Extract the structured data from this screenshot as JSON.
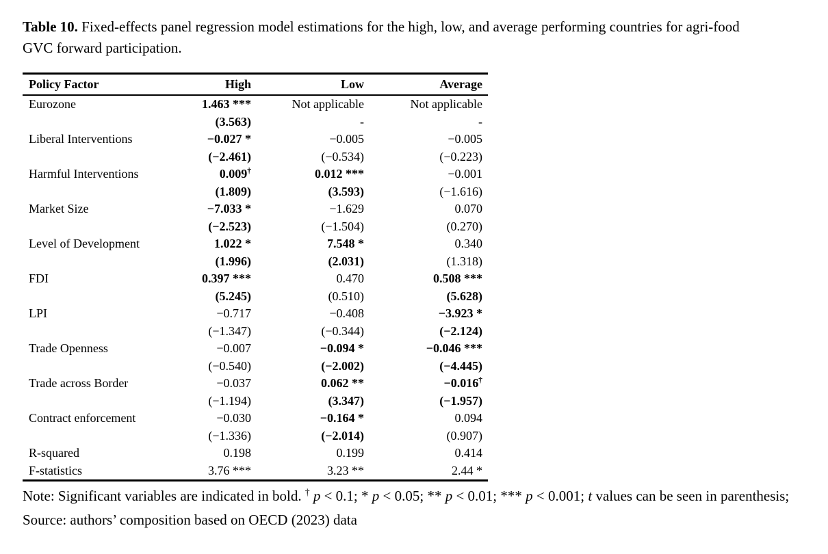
{
  "title": {
    "label": "Table 10.",
    "text": " Fixed-effects panel regression model estimations for the high, low, and average performing countries for agri-food GVC forward participation."
  },
  "table": {
    "columns": [
      "Policy Factor",
      "High",
      "Low",
      "Average"
    ],
    "rows": [
      [
        {
          "t": "Eurozone"
        },
        {
          "t": "1.463 ***",
          "b": 1
        },
        {
          "t": "Not applicable"
        },
        {
          "t": "Not applicable"
        }
      ],
      [
        {
          "t": ""
        },
        {
          "t": "(3.563)",
          "b": 1
        },
        {
          "t": "-"
        },
        {
          "t": "-"
        }
      ],
      [
        {
          "t": "Liberal Interventions"
        },
        {
          "t": "−0.027 *",
          "b": 1
        },
        {
          "t": "−0.005"
        },
        {
          "t": "−0.005"
        }
      ],
      [
        {
          "t": ""
        },
        {
          "t": "(−2.461)",
          "b": 1
        },
        {
          "t": "(−0.534)"
        },
        {
          "t": "(−0.223)"
        }
      ],
      [
        {
          "t": "Harmful Interventions"
        },
        {
          "t": "0.009",
          "s": "†",
          "b": 1
        },
        {
          "t": "0.012 ***",
          "b": 1
        },
        {
          "t": "−0.001"
        }
      ],
      [
        {
          "t": ""
        },
        {
          "t": "(1.809)",
          "b": 1
        },
        {
          "t": "(3.593)",
          "b": 1
        },
        {
          "t": "(−1.616)"
        }
      ],
      [
        {
          "t": "Market Size"
        },
        {
          "t": "−7.033 *",
          "b": 1
        },
        {
          "t": "−1.629"
        },
        {
          "t": "0.070"
        }
      ],
      [
        {
          "t": ""
        },
        {
          "t": "(−2.523)",
          "b": 1
        },
        {
          "t": "(−1.504)"
        },
        {
          "t": "(0.270)"
        }
      ],
      [
        {
          "t": "Level of Development"
        },
        {
          "t": "1.022 *",
          "b": 1
        },
        {
          "t": "7.548 *",
          "b": 1
        },
        {
          "t": "0.340"
        }
      ],
      [
        {
          "t": ""
        },
        {
          "t": "(1.996)",
          "b": 1
        },
        {
          "t": "(2.031)",
          "b": 1
        },
        {
          "t": "(1.318)"
        }
      ],
      [
        {
          "t": "FDI"
        },
        {
          "t": "0.397 ***",
          "b": 1
        },
        {
          "t": "0.470"
        },
        {
          "t": "0.508 ***",
          "b": 1
        }
      ],
      [
        {
          "t": ""
        },
        {
          "t": "(5.245)",
          "b": 1
        },
        {
          "t": "(0.510)"
        },
        {
          "t": "(5.628)",
          "b": 1
        }
      ],
      [
        {
          "t": "LPI"
        },
        {
          "t": "−0.717"
        },
        {
          "t": "−0.408"
        },
        {
          "t": "−3.923 *",
          "b": 1
        }
      ],
      [
        {
          "t": ""
        },
        {
          "t": "(−1.347)"
        },
        {
          "t": "(−0.344)"
        },
        {
          "t": "(−2.124)",
          "b": 1
        }
      ],
      [
        {
          "t": "Trade Openness"
        },
        {
          "t": "−0.007"
        },
        {
          "t": "−0.094 *",
          "b": 1
        },
        {
          "t": "−0.046 ***",
          "b": 1
        }
      ],
      [
        {
          "t": ""
        },
        {
          "t": "(−0.540)"
        },
        {
          "t": "(−2.002)",
          "b": 1
        },
        {
          "t": "(−4.445)",
          "b": 1
        }
      ],
      [
        {
          "t": "Trade across Border"
        },
        {
          "t": "−0.037"
        },
        {
          "t": "0.062 **",
          "b": 1
        },
        {
          "t": "−0.016",
          "s": "†",
          "b": 1
        }
      ],
      [
        {
          "t": ""
        },
        {
          "t": "(−1.194)"
        },
        {
          "t": "(3.347)",
          "b": 1
        },
        {
          "t": "(−1.957)",
          "b": 1
        }
      ],
      [
        {
          "t": "Contract enforcement"
        },
        {
          "t": "−0.030"
        },
        {
          "t": "−0.164 *",
          "b": 1
        },
        {
          "t": "0.094"
        }
      ],
      [
        {
          "t": ""
        },
        {
          "t": "(−1.336)"
        },
        {
          "t": "(−2.014)",
          "b": 1
        },
        {
          "t": "(0.907)"
        }
      ],
      [
        {
          "t": "R-squared"
        },
        {
          "t": "0.198"
        },
        {
          "t": "0.199"
        },
        {
          "t": "0.414"
        }
      ],
      [
        {
          "t": "F-statistics"
        },
        {
          "t": "3.76 ***"
        },
        {
          "t": "3.23 **"
        },
        {
          "t": "2.44 *"
        }
      ]
    ]
  },
  "note": {
    "segments": [
      {
        "t": "Note: Significant variables are indicated in bold. "
      },
      {
        "t": "†",
        "sup": 1
      },
      {
        "t": " "
      },
      {
        "t": "p",
        "i": 1
      },
      {
        "t": " < 0.1; * "
      },
      {
        "t": "p",
        "i": 1
      },
      {
        "t": " < 0.05; ** "
      },
      {
        "t": "p",
        "i": 1
      },
      {
        "t": " < 0.01; *** "
      },
      {
        "t": "p",
        "i": 1
      },
      {
        "t": " < 0.001; "
      },
      {
        "t": "t",
        "i": 1
      },
      {
        "t": " values can be seen in parenthesis; Source: authors’ composition based on OECD (2023) data"
      }
    ]
  }
}
